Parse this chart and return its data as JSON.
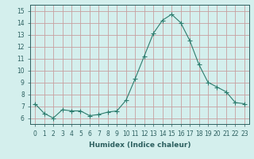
{
  "x": [
    0,
    1,
    2,
    3,
    4,
    5,
    6,
    7,
    8,
    9,
    10,
    11,
    12,
    13,
    14,
    15,
    16,
    17,
    18,
    19,
    20,
    21,
    22,
    23
  ],
  "y": [
    7.2,
    6.4,
    6.0,
    6.7,
    6.6,
    6.6,
    6.2,
    6.3,
    6.5,
    6.6,
    7.5,
    9.3,
    11.2,
    13.1,
    14.2,
    14.7,
    14.0,
    12.5,
    10.5,
    9.0,
    8.6,
    8.2,
    7.3,
    7.2
  ],
  "line_color": "#2d7d6e",
  "marker": "+",
  "marker_size": 4,
  "bg_color": "#d4efed",
  "grid_color": "#c8a0a0",
  "xlim": [
    -0.5,
    23.5
  ],
  "ylim": [
    5.5,
    15.5
  ],
  "yticks": [
    6,
    7,
    8,
    9,
    10,
    11,
    12,
    13,
    14,
    15
  ],
  "xticks": [
    0,
    1,
    2,
    3,
    4,
    5,
    6,
    7,
    8,
    9,
    10,
    11,
    12,
    13,
    14,
    15,
    16,
    17,
    18,
    19,
    20,
    21,
    22,
    23
  ],
  "xtick_labels": [
    "0",
    "1",
    "2",
    "3",
    "4",
    "5",
    "6",
    "7",
    "8",
    "9",
    "10",
    "11",
    "12",
    "13",
    "14",
    "15",
    "16",
    "17",
    "18",
    "19",
    "20",
    "21",
    "22",
    "23"
  ],
  "tick_color": "#2d6060",
  "xlabel": "Humidex (Indice chaleur)",
  "label_fontsize": 6.5,
  "tick_fontsize": 5.5
}
